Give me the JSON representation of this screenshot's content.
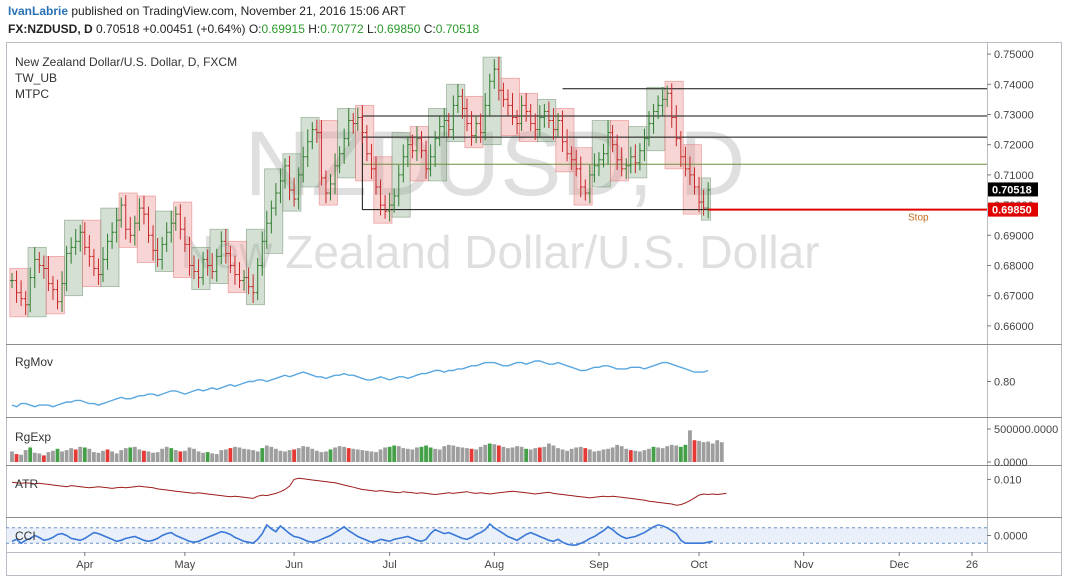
{
  "header": {
    "author": "IvanLabrie",
    "published": "published on TradingView.com, November 21, 2016 15:06 ART",
    "symbol": "FX:NZDUSD, D",
    "last": "0.70518",
    "change": "+0.00451 (+0.64%)",
    "o_label": "O:",
    "o_value": "0.69915",
    "h_label": "H:",
    "h_value": "0.70772",
    "l_label": "L:",
    "l_value": "0.69850",
    "c_label": "C:",
    "c_value": "0.70518"
  },
  "colors": {
    "bull": "#2e7d2e",
    "bear": "#c62828",
    "box_green": "#8fae8f",
    "box_red": "#ef9a9a",
    "rgmov": "#5aa7e0",
    "atr": "#9c1c1c",
    "cci": "#3a78d8",
    "stop": "#e00000"
  },
  "chart_data": [
    {
      "type": "candlestick",
      "legend": [
        "New Zealand Dollar/U.S. Dollar, D, FXCM",
        "TW_UB",
        "MTPC"
      ],
      "watermark": [
        "NZDUSD, D",
        "New Zealand Dollar/U.S. Dollar"
      ],
      "ylim": [
        0.654,
        0.754
      ],
      "yticks": [
        "0.75000",
        "0.74000",
        "0.73000",
        "0.72000",
        "0.71000",
        "0.70000",
        "0.69000",
        "0.68000",
        "0.67000",
        "0.66000"
      ],
      "ytick_values": [
        0.75,
        0.74,
        0.73,
        0.72,
        0.71,
        0.7,
        0.69,
        0.68,
        0.67,
        0.66
      ],
      "price_labels": [
        {
          "text": "0.70518",
          "value": 0.70518,
          "bg": "#000000"
        },
        {
          "text": "0.69850",
          "value": 0.6985,
          "bg": "#e00000"
        }
      ],
      "stop_label": "Stop",
      "stop_value": 0.6985,
      "levels": [
        0.7385,
        0.7295,
        0.7225,
        0.7135,
        0.6985
      ],
      "closes": [
        0.675,
        0.671,
        0.669,
        0.667,
        0.676,
        0.682,
        0.68,
        0.679,
        0.674,
        0.672,
        0.668,
        0.674,
        0.684,
        0.686,
        0.688,
        0.691,
        0.686,
        0.683,
        0.679,
        0.677,
        0.682,
        0.688,
        0.691,
        0.695,
        0.7,
        0.692,
        0.69,
        0.694,
        0.699,
        0.697,
        0.69,
        0.685,
        0.682,
        0.687,
        0.691,
        0.694,
        0.697,
        0.692,
        0.687,
        0.68,
        0.678,
        0.676,
        0.682,
        0.68,
        0.678,
        0.683,
        0.688,
        0.684,
        0.68,
        0.677,
        0.675,
        0.676,
        0.673,
        0.671,
        0.68,
        0.688,
        0.694,
        0.699,
        0.704,
        0.708,
        0.713,
        0.705,
        0.702,
        0.71,
        0.716,
        0.721,
        0.725,
        0.724,
        0.709,
        0.704,
        0.707,
        0.713,
        0.717,
        0.722,
        0.728,
        0.727,
        0.729,
        0.724,
        0.717,
        0.712,
        0.706,
        0.7,
        0.698,
        0.7,
        0.703,
        0.71,
        0.716,
        0.72,
        0.718,
        0.722,
        0.718,
        0.712,
        0.716,
        0.722,
        0.726,
        0.728,
        0.725,
        0.733,
        0.736,
        0.732,
        0.727,
        0.723,
        0.727,
        0.724,
        0.733,
        0.741,
        0.745,
        0.738,
        0.735,
        0.733,
        0.729,
        0.727,
        0.733,
        0.731,
        0.727,
        0.725,
        0.729,
        0.731,
        0.728,
        0.725,
        0.728,
        0.721,
        0.717,
        0.715,
        0.712,
        0.706,
        0.704,
        0.71,
        0.713,
        0.715,
        0.717,
        0.724,
        0.72,
        0.715,
        0.712,
        0.713,
        0.716,
        0.714,
        0.718,
        0.722,
        0.727,
        0.731,
        0.733,
        0.735,
        0.737,
        0.729,
        0.722,
        0.716,
        0.712,
        0.71,
        0.706,
        0.701,
        0.699,
        0.705
      ]
    },
    {
      "type": "line",
      "name": "RgMov",
      "ylim": [
        0.6,
        1.0
      ],
      "yticks": [
        "0.80"
      ],
      "ytick_values": [
        0.8
      ],
      "values": [
        0.65,
        0.64,
        0.66,
        0.66,
        0.65,
        0.64,
        0.65,
        0.65,
        0.65,
        0.64,
        0.65,
        0.66,
        0.67,
        0.67,
        0.68,
        0.68,
        0.67,
        0.66,
        0.66,
        0.65,
        0.66,
        0.67,
        0.68,
        0.69,
        0.7,
        0.69,
        0.69,
        0.7,
        0.71,
        0.71,
        0.72,
        0.72,
        0.71,
        0.72,
        0.73,
        0.74,
        0.74,
        0.73,
        0.72,
        0.73,
        0.74,
        0.75,
        0.74,
        0.75,
        0.76,
        0.75,
        0.76,
        0.77,
        0.78,
        0.77,
        0.78,
        0.79,
        0.8,
        0.8,
        0.81,
        0.81,
        0.8,
        0.81,
        0.82,
        0.83,
        0.84,
        0.83,
        0.84,
        0.85,
        0.86,
        0.85,
        0.84,
        0.83,
        0.83,
        0.82,
        0.83,
        0.84,
        0.84,
        0.85,
        0.84,
        0.84,
        0.83,
        0.82,
        0.81,
        0.81,
        0.82,
        0.83,
        0.82,
        0.81,
        0.82,
        0.83,
        0.83,
        0.82,
        0.83,
        0.84,
        0.85,
        0.85,
        0.86,
        0.87,
        0.87,
        0.86,
        0.87,
        0.87,
        0.88,
        0.88,
        0.89,
        0.9,
        0.9,
        0.91,
        0.92,
        0.92,
        0.92,
        0.91,
        0.9,
        0.9,
        0.91,
        0.92,
        0.92,
        0.91,
        0.92,
        0.93,
        0.93,
        0.92,
        0.91,
        0.91,
        0.92,
        0.91,
        0.9,
        0.89,
        0.88,
        0.87,
        0.87,
        0.88,
        0.89,
        0.89,
        0.9,
        0.9,
        0.89,
        0.88,
        0.88,
        0.88,
        0.89,
        0.89,
        0.89,
        0.88,
        0.89,
        0.9,
        0.91,
        0.92,
        0.92,
        0.91,
        0.9,
        0.89,
        0.88,
        0.87,
        0.86,
        0.86,
        0.86,
        0.87
      ]
    },
    {
      "type": "bar",
      "name": "RgExp",
      "ylim": [
        0,
        500000
      ],
      "yticks": [
        "500000.0000",
        "0.0000"
      ],
      "ytick_values": [
        500000,
        0
      ],
      "values": [
        160000,
        120000,
        110000,
        180000,
        220000,
        140000,
        130000,
        100000,
        150000,
        170000,
        200000,
        160000,
        180000,
        210000,
        190000,
        230000,
        220000,
        200000,
        150000,
        140000,
        170000,
        190000,
        160000,
        130000,
        180000,
        210000,
        220000,
        230000,
        190000,
        170000,
        160000,
        140000,
        150000,
        200000,
        230000,
        210000,
        180000,
        160000,
        170000,
        220000,
        200000,
        160000,
        140000,
        150000,
        130000,
        120000,
        180000,
        190000,
        210000,
        230000,
        220000,
        200000,
        190000,
        180000,
        160000,
        210000,
        250000,
        230000,
        200000,
        170000,
        160000,
        180000,
        190000,
        210000,
        240000,
        230000,
        200000,
        170000,
        150000,
        160000,
        190000,
        220000,
        240000,
        230000,
        210000,
        200000,
        190000,
        180000,
        170000,
        160000,
        150000,
        190000,
        220000,
        230000,
        250000,
        240000,
        210000,
        200000,
        190000,
        220000,
        230000,
        250000,
        220000,
        200000,
        190000,
        240000,
        260000,
        250000,
        230000,
        220000,
        210000,
        200000,
        190000,
        230000,
        260000,
        280000,
        270000,
        250000,
        230000,
        210000,
        220000,
        240000,
        230000,
        200000,
        190000,
        210000,
        220000,
        230000,
        280000,
        250000,
        210000,
        190000,
        170000,
        200000,
        220000,
        230000,
        210000,
        190000,
        160000,
        170000,
        190000,
        200000,
        220000,
        260000,
        240000,
        200000,
        180000,
        170000,
        160000,
        180000,
        200000,
        230000,
        220000,
        210000,
        240000,
        260000,
        250000,
        230000,
        260000,
        480000,
        330000,
        320000,
        300000,
        310000,
        280000,
        330000,
        300000
      ],
      "bar_colors": [
        "gray",
        "red",
        "gray",
        "gray",
        "green",
        "gray",
        "gray",
        "red",
        "gray",
        "gray",
        "green",
        "gray",
        "gray",
        "gray",
        "red",
        "gray",
        "green",
        "gray",
        "gray",
        "gray",
        "gray",
        "red",
        "gray",
        "gray",
        "gray",
        "gray",
        "green",
        "gray",
        "gray",
        "red",
        "gray",
        "gray",
        "gray",
        "gray",
        "gray",
        "green",
        "gray",
        "red",
        "gray",
        "gray",
        "gray",
        "gray",
        "gray",
        "green",
        "gray",
        "gray",
        "gray",
        "gray",
        "red",
        "gray",
        "gray",
        "gray",
        "gray",
        "gray",
        "gray",
        "green",
        "gray",
        "gray",
        "gray",
        "gray",
        "gray",
        "gray",
        "red",
        "gray",
        "gray",
        "gray",
        "gray",
        "gray",
        "gray",
        "gray",
        "green",
        "gray",
        "gray",
        "gray",
        "red",
        "gray",
        "gray",
        "gray",
        "gray",
        "gray",
        "gray",
        "gray",
        "gray",
        "green",
        "green",
        "gray",
        "gray",
        "gray",
        "gray",
        "gray",
        "green",
        "green",
        "green",
        "gray",
        "gray",
        "gray",
        "gray",
        "gray",
        "gray",
        "gray",
        "gray",
        "red",
        "gray",
        "gray",
        "gray",
        "green",
        "gray",
        "red",
        "gray",
        "gray",
        "gray",
        "gray",
        "gray",
        "green",
        "gray",
        "gray",
        "red",
        "gray",
        "gray",
        "gray",
        "gray",
        "gray",
        "gray",
        "gray",
        "gray",
        "gray",
        "red",
        "gray",
        "gray",
        "gray",
        "gray",
        "gray",
        "gray",
        "gray",
        "gray",
        "gray",
        "red",
        "gray",
        "gray",
        "gray",
        "gray",
        "green",
        "gray",
        "gray",
        "gray",
        "gray",
        "gray",
        "green",
        "green",
        "gray",
        "red",
        "gray",
        "gray",
        "gray",
        "gray",
        "gray",
        "gray",
        "gray"
      ]
    },
    {
      "type": "line",
      "name": "ATR",
      "ylim": [
        0.004,
        0.0115
      ],
      "yticks": [
        "0.010"
      ],
      "ytick_values": [
        0.01
      ],
      "values": [
        0.0095,
        0.0094,
        0.0093,
        0.0094,
        0.0093,
        0.0092,
        0.0093,
        0.0092,
        0.0091,
        0.009,
        0.0089,
        0.0088,
        0.0087,
        0.0089,
        0.0088,
        0.0087,
        0.0086,
        0.0085,
        0.0086,
        0.0087,
        0.0086,
        0.0085,
        0.0084,
        0.0085,
        0.0086,
        0.0085,
        0.0086,
        0.0087,
        0.0088,
        0.0087,
        0.0086,
        0.0085,
        0.0083,
        0.0082,
        0.0081,
        0.008,
        0.0079,
        0.0078,
        0.0077,
        0.0076,
        0.0075,
        0.0076,
        0.0075,
        0.0074,
        0.0073,
        0.0072,
        0.0071,
        0.007,
        0.0069,
        0.007,
        0.0069,
        0.0068,
        0.0067,
        0.0066,
        0.007,
        0.0072,
        0.0071,
        0.0073,
        0.0075,
        0.0078,
        0.0082,
        0.0088,
        0.01,
        0.0102,
        0.0101,
        0.01,
        0.0099,
        0.0098,
        0.0097,
        0.0096,
        0.0095,
        0.0094,
        0.0092,
        0.009,
        0.0088,
        0.0086,
        0.0084,
        0.0082,
        0.0081,
        0.008,
        0.0079,
        0.008,
        0.0079,
        0.0078,
        0.0077,
        0.0076,
        0.0078,
        0.0077,
        0.0076,
        0.0075,
        0.0076,
        0.0075,
        0.0074,
        0.0073,
        0.0074,
        0.0075,
        0.0076,
        0.0075,
        0.0076,
        0.0077,
        0.0078,
        0.0076,
        0.0075,
        0.0076,
        0.0075,
        0.0074,
        0.0075,
        0.0076,
        0.0077,
        0.0078,
        0.0079,
        0.0078,
        0.0077,
        0.0076,
        0.0075,
        0.0074,
        0.0075,
        0.0076,
        0.0077,
        0.0075,
        0.0074,
        0.0073,
        0.0072,
        0.0071,
        0.007,
        0.0069,
        0.0068,
        0.0067,
        0.0068,
        0.0069,
        0.007,
        0.0069,
        0.007,
        0.0069,
        0.0068,
        0.0067,
        0.0066,
        0.0065,
        0.0064,
        0.0063,
        0.0061,
        0.006,
        0.0059,
        0.0058,
        0.0057,
        0.0056,
        0.0054,
        0.0055,
        0.0058,
        0.0062,
        0.0067,
        0.0072,
        0.0074,
        0.0073,
        0.0074,
        0.0073,
        0.0074,
        0.0075
      ]
    },
    {
      "type": "line",
      "name": "CCI",
      "ylim": [
        -1.3,
        1.3
      ],
      "yticks": [
        "0.0000"
      ],
      "ytick_values": [
        0
      ],
      "band": [
        -0.7,
        0.7
      ],
      "values": [
        -0.6,
        -0.4,
        -0.8,
        -0.5,
        -0.3,
        0.0,
        -0.2,
        -0.5,
        -0.4,
        -0.2,
        0.1,
        0.2,
        0.0,
        -0.3,
        -0.4,
        -0.5,
        -0.3,
        0.0,
        0.3,
        0.2,
        0.0,
        -0.2,
        -0.4,
        -0.6,
        -0.5,
        -0.3,
        -0.2,
        -0.1,
        -0.3,
        -0.5,
        -0.6,
        -0.5,
        -0.3,
        0.0,
        0.2,
        0.3,
        0.0,
        -0.2,
        -0.4,
        -0.6,
        -0.7,
        -0.6,
        -0.4,
        -0.2,
        0.0,
        0.2,
        0.4,
        0.3,
        0.1,
        -0.2,
        -0.4,
        -0.6,
        -0.7,
        -0.8,
        -0.4,
        0.2,
        1.1,
        0.7,
        0.4,
        1.0,
        0.6,
        0.2,
        -0.1,
        -0.2,
        -0.4,
        -0.6,
        -0.7,
        -0.6,
        -0.4,
        -0.2,
        0.0,
        0.3,
        0.6,
        0.9,
        0.5,
        0.2,
        -0.1,
        -0.3,
        -0.5,
        -0.7,
        -0.6,
        -0.4,
        -0.5,
        -0.6,
        -0.4,
        -0.3,
        -0.2,
        -0.1,
        -0.3,
        -0.5,
        -0.6,
        -0.4,
        0.2,
        0.6,
        0.4,
        0.2,
        0.3,
        0.1,
        -0.1,
        -0.3,
        -0.4,
        -0.2,
        0.1,
        0.3,
        0.6,
        1.2,
        0.8,
        0.5,
        0.2,
        -0.1,
        -0.3,
        -0.5,
        -0.2,
        0.1,
        0.3,
        0.1,
        -0.1,
        -0.3,
        -0.5,
        -0.6,
        -0.4,
        -0.7,
        -0.9,
        -1.0,
        -1.0,
        -0.8,
        -0.6,
        -0.3,
        -0.1,
        0.2,
        0.5,
        0.9,
        0.6,
        0.2,
        -0.1,
        -0.3,
        -0.2,
        -0.1,
        0.1,
        0.3,
        0.6,
        0.9,
        1.1,
        1.0,
        0.8,
        0.5,
        0.2,
        -0.5,
        -0.8,
        -0.8,
        -0.8,
        -0.8,
        -0.8,
        -0.7,
        -0.6
      ]
    }
  ],
  "xaxis": {
    "ticks": [
      {
        "label": "Apr",
        "bar": 16
      },
      {
        "label": "May",
        "bar": 38
      },
      {
        "label": "Jun",
        "bar": 62
      },
      {
        "label": "Jul",
        "bar": 83
      },
      {
        "label": "Aug",
        "bar": 106
      },
      {
        "label": "Sep",
        "bar": 129
      },
      {
        "label": "Oct",
        "bar": 151
      },
      {
        "label": "Nov",
        "bar": 174
      },
      {
        "label": "Dec",
        "bar": 195
      },
      {
        "label": "26",
        "bar": 211
      }
    ]
  }
}
